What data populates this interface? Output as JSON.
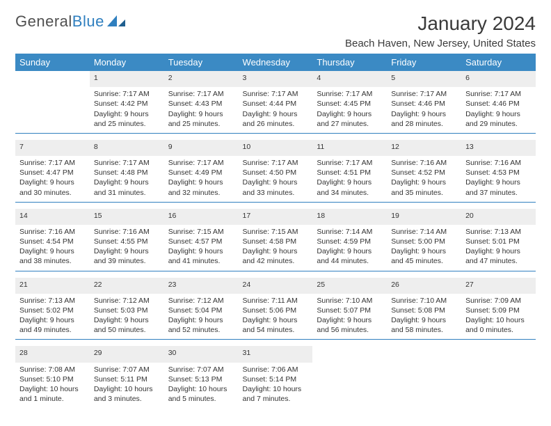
{
  "brand": {
    "name1": "General",
    "name2": "Blue"
  },
  "title": "January 2024",
  "location": "Beach Haven, New Jersey, United States",
  "colors": {
    "header_bg": "#3b8ac4",
    "daynum_bg": "#eeeeee",
    "rule": "#2f7fbf"
  },
  "day_names": [
    "Sunday",
    "Monday",
    "Tuesday",
    "Wednesday",
    "Thursday",
    "Friday",
    "Saturday"
  ],
  "weeks": [
    {
      "nums": [
        "",
        "1",
        "2",
        "3",
        "4",
        "5",
        "6"
      ],
      "cells": [
        null,
        {
          "sr": "Sunrise: 7:17 AM",
          "ss": "Sunset: 4:42 PM",
          "dl": "Daylight: 9 hours and 25 minutes."
        },
        {
          "sr": "Sunrise: 7:17 AM",
          "ss": "Sunset: 4:43 PM",
          "dl": "Daylight: 9 hours and 25 minutes."
        },
        {
          "sr": "Sunrise: 7:17 AM",
          "ss": "Sunset: 4:44 PM",
          "dl": "Daylight: 9 hours and 26 minutes."
        },
        {
          "sr": "Sunrise: 7:17 AM",
          "ss": "Sunset: 4:45 PM",
          "dl": "Daylight: 9 hours and 27 minutes."
        },
        {
          "sr": "Sunrise: 7:17 AM",
          "ss": "Sunset: 4:46 PM",
          "dl": "Daylight: 9 hours and 28 minutes."
        },
        {
          "sr": "Sunrise: 7:17 AM",
          "ss": "Sunset: 4:46 PM",
          "dl": "Daylight: 9 hours and 29 minutes."
        }
      ]
    },
    {
      "nums": [
        "7",
        "8",
        "9",
        "10",
        "11",
        "12",
        "13"
      ],
      "cells": [
        {
          "sr": "Sunrise: 7:17 AM",
          "ss": "Sunset: 4:47 PM",
          "dl": "Daylight: 9 hours and 30 minutes."
        },
        {
          "sr": "Sunrise: 7:17 AM",
          "ss": "Sunset: 4:48 PM",
          "dl": "Daylight: 9 hours and 31 minutes."
        },
        {
          "sr": "Sunrise: 7:17 AM",
          "ss": "Sunset: 4:49 PM",
          "dl": "Daylight: 9 hours and 32 minutes."
        },
        {
          "sr": "Sunrise: 7:17 AM",
          "ss": "Sunset: 4:50 PM",
          "dl": "Daylight: 9 hours and 33 minutes."
        },
        {
          "sr": "Sunrise: 7:17 AM",
          "ss": "Sunset: 4:51 PM",
          "dl": "Daylight: 9 hours and 34 minutes."
        },
        {
          "sr": "Sunrise: 7:16 AM",
          "ss": "Sunset: 4:52 PM",
          "dl": "Daylight: 9 hours and 35 minutes."
        },
        {
          "sr": "Sunrise: 7:16 AM",
          "ss": "Sunset: 4:53 PM",
          "dl": "Daylight: 9 hours and 37 minutes."
        }
      ]
    },
    {
      "nums": [
        "14",
        "15",
        "16",
        "17",
        "18",
        "19",
        "20"
      ],
      "cells": [
        {
          "sr": "Sunrise: 7:16 AM",
          "ss": "Sunset: 4:54 PM",
          "dl": "Daylight: 9 hours and 38 minutes."
        },
        {
          "sr": "Sunrise: 7:16 AM",
          "ss": "Sunset: 4:55 PM",
          "dl": "Daylight: 9 hours and 39 minutes."
        },
        {
          "sr": "Sunrise: 7:15 AM",
          "ss": "Sunset: 4:57 PM",
          "dl": "Daylight: 9 hours and 41 minutes."
        },
        {
          "sr": "Sunrise: 7:15 AM",
          "ss": "Sunset: 4:58 PM",
          "dl": "Daylight: 9 hours and 42 minutes."
        },
        {
          "sr": "Sunrise: 7:14 AM",
          "ss": "Sunset: 4:59 PM",
          "dl": "Daylight: 9 hours and 44 minutes."
        },
        {
          "sr": "Sunrise: 7:14 AM",
          "ss": "Sunset: 5:00 PM",
          "dl": "Daylight: 9 hours and 45 minutes."
        },
        {
          "sr": "Sunrise: 7:13 AM",
          "ss": "Sunset: 5:01 PM",
          "dl": "Daylight: 9 hours and 47 minutes."
        }
      ]
    },
    {
      "nums": [
        "21",
        "22",
        "23",
        "24",
        "25",
        "26",
        "27"
      ],
      "cells": [
        {
          "sr": "Sunrise: 7:13 AM",
          "ss": "Sunset: 5:02 PM",
          "dl": "Daylight: 9 hours and 49 minutes."
        },
        {
          "sr": "Sunrise: 7:12 AM",
          "ss": "Sunset: 5:03 PM",
          "dl": "Daylight: 9 hours and 50 minutes."
        },
        {
          "sr": "Sunrise: 7:12 AM",
          "ss": "Sunset: 5:04 PM",
          "dl": "Daylight: 9 hours and 52 minutes."
        },
        {
          "sr": "Sunrise: 7:11 AM",
          "ss": "Sunset: 5:06 PM",
          "dl": "Daylight: 9 hours and 54 minutes."
        },
        {
          "sr": "Sunrise: 7:10 AM",
          "ss": "Sunset: 5:07 PM",
          "dl": "Daylight: 9 hours and 56 minutes."
        },
        {
          "sr": "Sunrise: 7:10 AM",
          "ss": "Sunset: 5:08 PM",
          "dl": "Daylight: 9 hours and 58 minutes."
        },
        {
          "sr": "Sunrise: 7:09 AM",
          "ss": "Sunset: 5:09 PM",
          "dl": "Daylight: 10 hours and 0 minutes."
        }
      ]
    },
    {
      "nums": [
        "28",
        "29",
        "30",
        "31",
        "",
        "",
        ""
      ],
      "cells": [
        {
          "sr": "Sunrise: 7:08 AM",
          "ss": "Sunset: 5:10 PM",
          "dl": "Daylight: 10 hours and 1 minute."
        },
        {
          "sr": "Sunrise: 7:07 AM",
          "ss": "Sunset: 5:11 PM",
          "dl": "Daylight: 10 hours and 3 minutes."
        },
        {
          "sr": "Sunrise: 7:07 AM",
          "ss": "Sunset: 5:13 PM",
          "dl": "Daylight: 10 hours and 5 minutes."
        },
        {
          "sr": "Sunrise: 7:06 AM",
          "ss": "Sunset: 5:14 PM",
          "dl": "Daylight: 10 hours and 7 minutes."
        },
        null,
        null,
        null
      ]
    }
  ]
}
